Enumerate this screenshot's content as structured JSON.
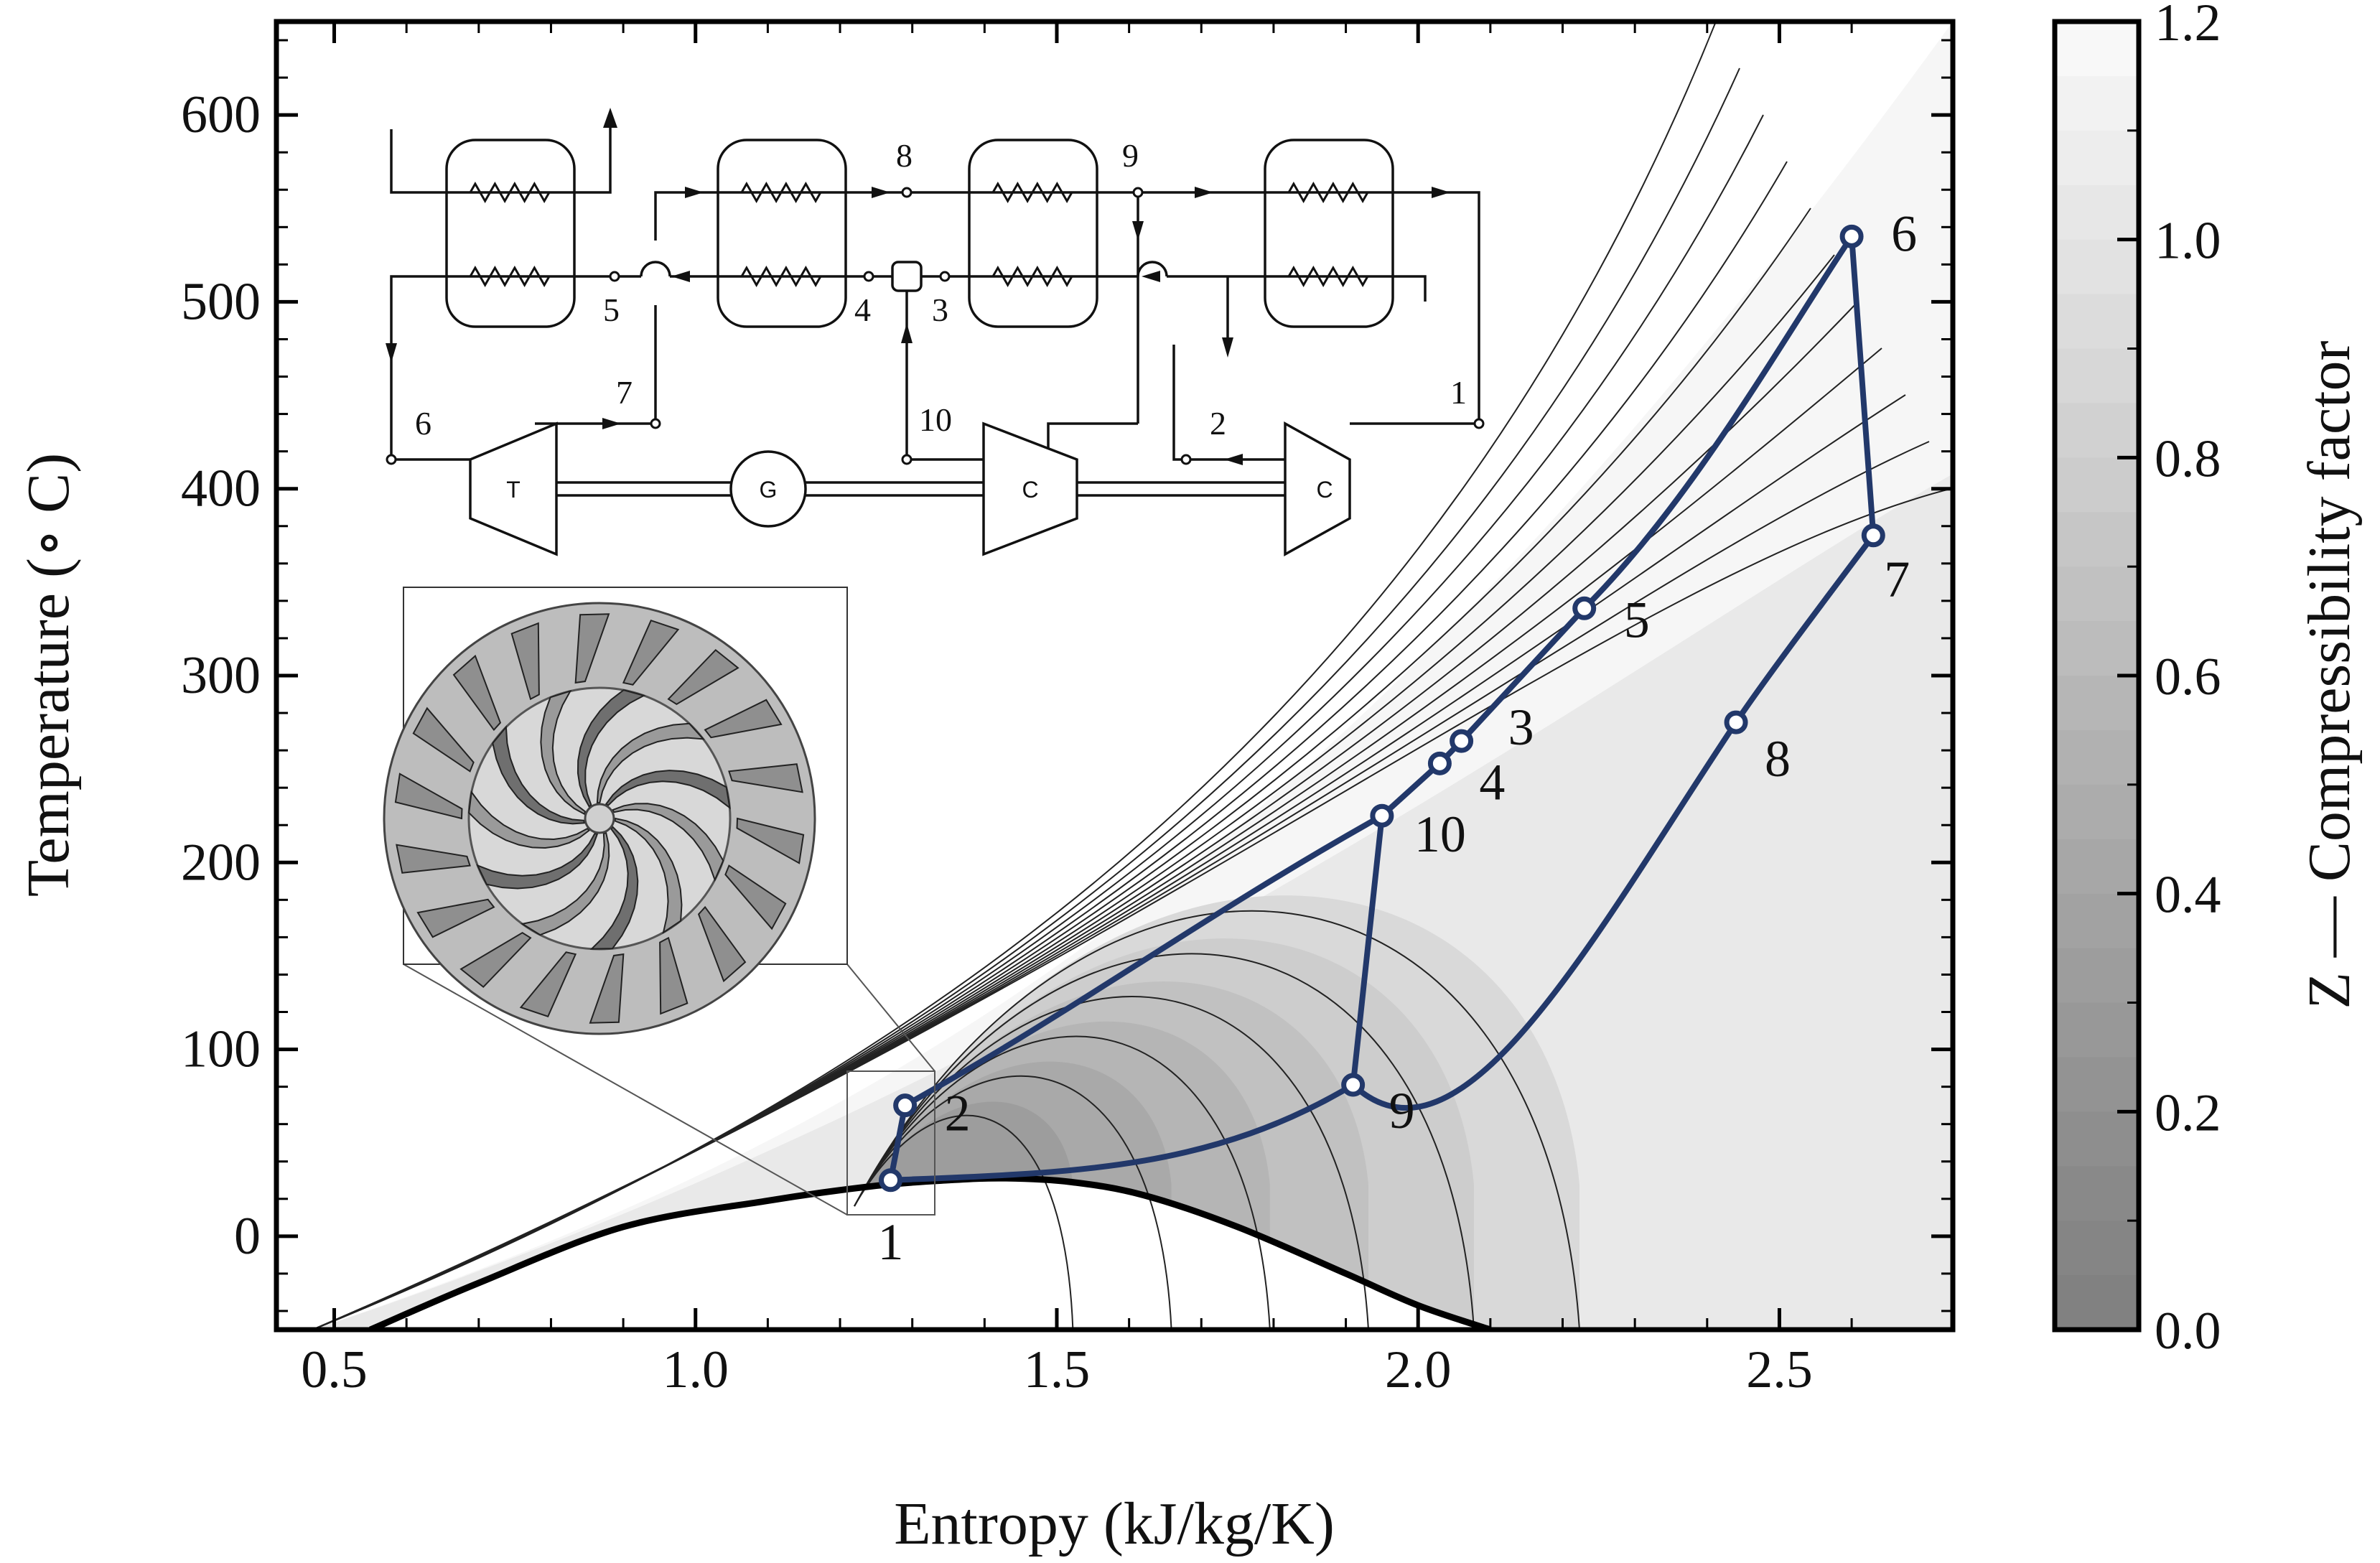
{
  "chart_data": {
    "type": "line",
    "xlabel": "Entropy (kJ/kg/K)",
    "ylabel": "Temperature (∘ C)",
    "xlim": [
      0.42,
      2.74
    ],
    "ylim": [
      -50,
      650
    ],
    "x_ticks": [
      "0.5",
      "1.0",
      "1.5",
      "2.0",
      "2.5"
    ],
    "x_tick_values": [
      0.5,
      1.0,
      1.5,
      2.0,
      2.5
    ],
    "y_ticks": [
      "0",
      "100",
      "200",
      "300",
      "400",
      "500",
      "600"
    ],
    "y_tick_values": [
      0,
      100,
      200,
      300,
      400,
      500,
      600
    ],
    "colorbar": {
      "label": "Z — Compressibility factor",
      "min": 0.0,
      "max": 1.2,
      "ticks": [
        "0.0",
        "0.2",
        "0.4",
        "0.6",
        "0.8",
        "1.0",
        "1.2"
      ],
      "tick_values": [
        0.0,
        0.2,
        0.4,
        0.6,
        0.8,
        1.0,
        1.2
      ]
    },
    "saturation_dome": {
      "s": [
        0.55,
        0.7,
        0.9,
        1.1,
        1.25,
        1.35,
        1.43,
        1.52,
        1.62,
        1.75,
        1.9,
        2.0,
        2.1
      ],
      "T": [
        -50,
        -25,
        5,
        19,
        27,
        30,
        31,
        29,
        22,
        5,
        -20,
        -37,
        -50
      ]
    },
    "cycle_states": [
      {
        "label": "1",
        "s": 1.27,
        "T": 30
      },
      {
        "label": "2",
        "s": 1.29,
        "T": 70
      },
      {
        "label": "3",
        "s": 2.06,
        "T": 265
      },
      {
        "label": "4",
        "s": 2.03,
        "T": 253
      },
      {
        "label": "5",
        "s": 2.23,
        "T": 336
      },
      {
        "label": "6",
        "s": 2.6,
        "T": 535
      },
      {
        "label": "7",
        "s": 2.63,
        "T": 375
      },
      {
        "label": "8",
        "s": 2.44,
        "T": 275
      },
      {
        "label": "9",
        "s": 1.91,
        "T": 81
      },
      {
        "label": "10",
        "s": 1.95,
        "T": 225
      }
    ]
  },
  "schematic": {
    "labels": [
      "1",
      "2",
      "3",
      "4",
      "5",
      "6",
      "7",
      "8",
      "9",
      "10"
    ],
    "turbine": "T",
    "generator": "G",
    "compressor_main": "C",
    "compressor_re": "C"
  }
}
